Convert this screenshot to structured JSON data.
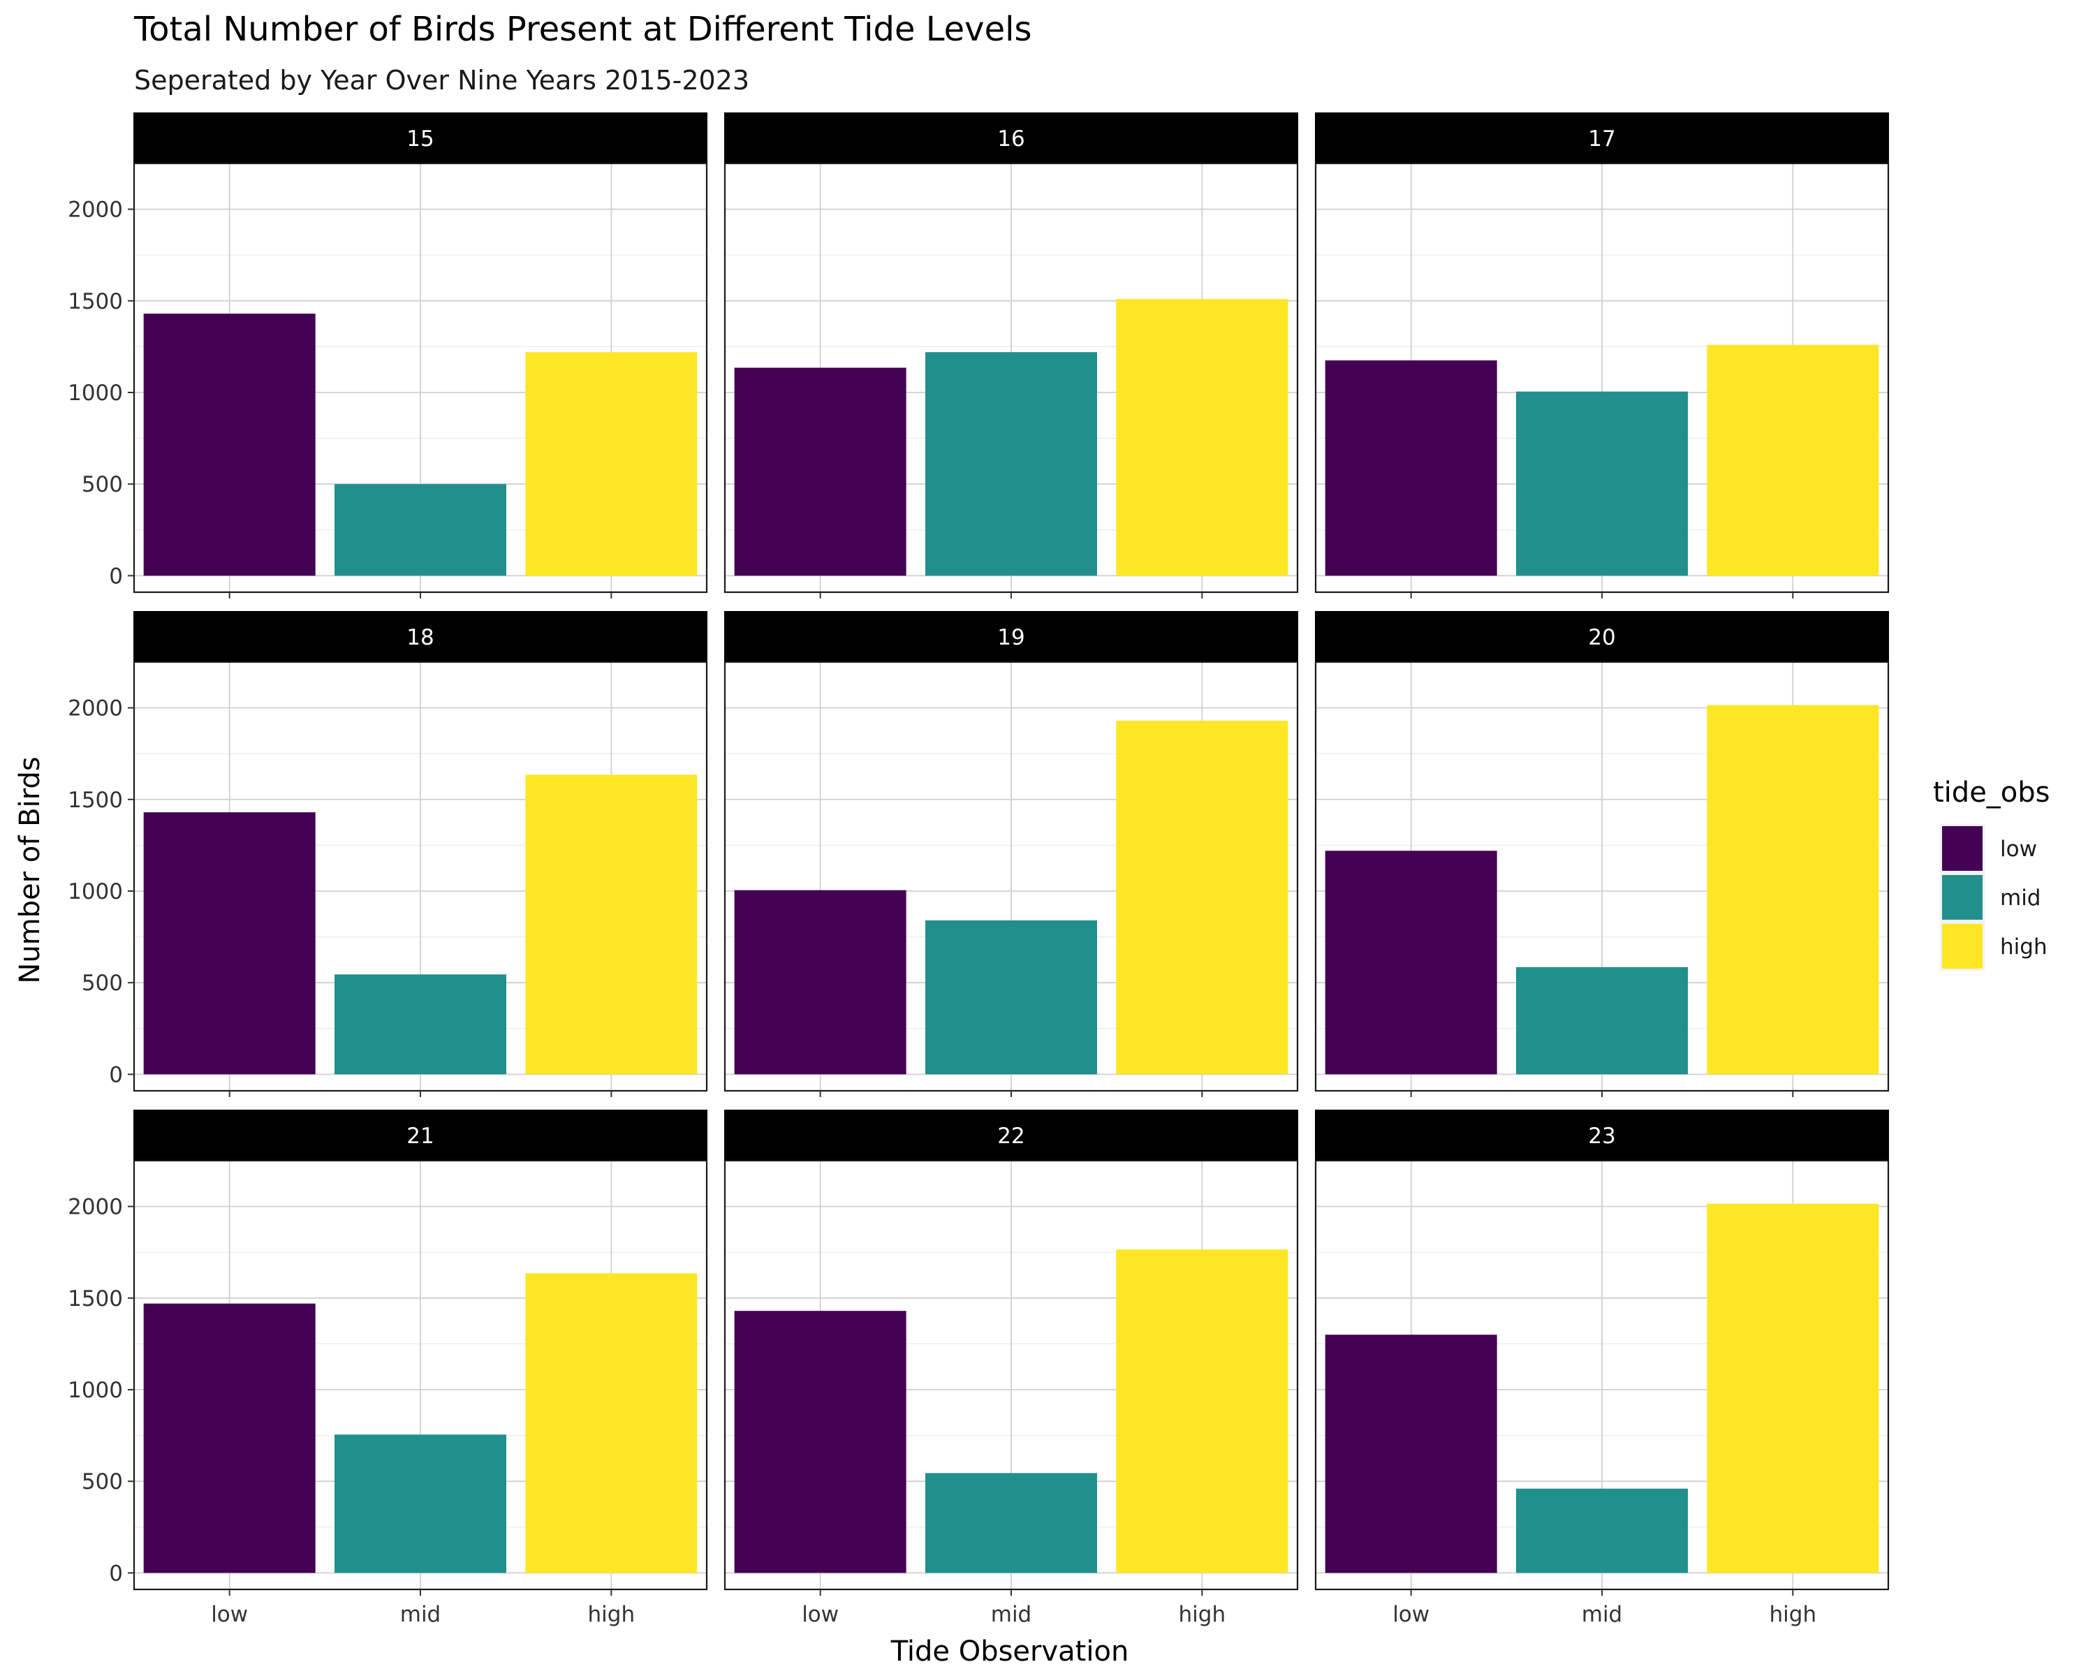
{
  "chart_data": {
    "type": "bar",
    "title": "Total Number of Birds Present at Different Tide Levels",
    "subtitle": "Seperated by Year Over Nine Years 2015-2023",
    "xlabel": "Tide Observation",
    "ylabel": "Number of Birds",
    "categories": [
      "low",
      "mid",
      "high"
    ],
    "ylim": [
      -90,
      2250
    ],
    "y_ticks": [
      "0",
      "500",
      "1000",
      "1500",
      "2000"
    ],
    "grid": true,
    "legend": {
      "title": "tide_obs",
      "position": "right",
      "entries": [
        "low",
        "mid",
        "high"
      ]
    },
    "colors": {
      "low": "#440154",
      "mid": "#21908C",
      "high": "#FDE725"
    },
    "panels": [
      {
        "label": "15",
        "values": [
          1430,
          500,
          1220
        ]
      },
      {
        "label": "16",
        "values": [
          1135,
          1220,
          1510
        ]
      },
      {
        "label": "17",
        "values": [
          1175,
          1005,
          1260
        ]
      },
      {
        "label": "18",
        "values": [
          1430,
          545,
          1635
        ]
      },
      {
        "label": "19",
        "values": [
          1005,
          840,
          1930
        ]
      },
      {
        "label": "20",
        "values": [
          1220,
          585,
          2015
        ]
      },
      {
        "label": "21",
        "values": [
          1470,
          755,
          1635
        ]
      },
      {
        "label": "22",
        "values": [
          1430,
          545,
          1765
        ]
      },
      {
        "label": "23",
        "values": [
          1300,
          460,
          2015
        ]
      }
    ]
  }
}
